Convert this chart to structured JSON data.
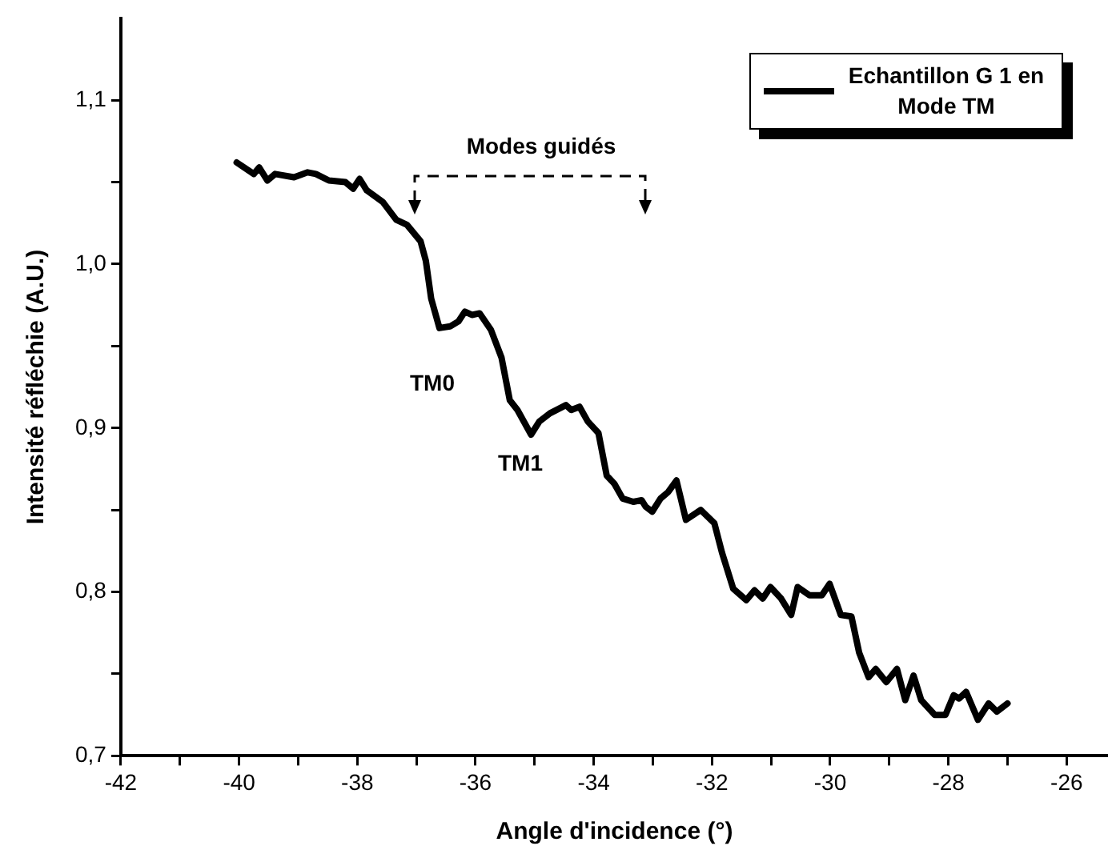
{
  "chart_data": {
    "type": "line",
    "xlabel": "Angle d'incidence (°)",
    "ylabel": "Intensité réfléchie (A.U.)",
    "legend": "top right",
    "grid": false,
    "marker": "none",
    "line_style": "solid",
    "xlim": [
      -42,
      -25.3
    ],
    "xticks": [
      -42,
      {
        "value": -41,
        "label": null
      },
      -40,
      {
        "value": -39,
        "label": null
      },
      -38,
      {
        "value": -37,
        "label": null
      },
      -36,
      {
        "value": -35,
        "label": null
      },
      -34,
      {
        "value": -33,
        "label": null
      },
      -32,
      {
        "value": -31,
        "label": null
      },
      -30,
      {
        "value": -29,
        "label": null
      },
      -28,
      {
        "value": -27,
        "label": null
      },
      -26
    ],
    "ylim": [
      0.7,
      1.15
    ],
    "yticks": [
      {
        "value": 0.7,
        "label": "0,7"
      },
      {
        "value": 0.75,
        "label": null
      },
      {
        "value": 0.8,
        "label": "0,8"
      },
      {
        "value": 0.85,
        "label": null
      },
      {
        "value": 0.9,
        "label": "0,9"
      },
      {
        "value": 0.95,
        "label": null
      },
      {
        "value": 1.0,
        "label": "1,0"
      },
      {
        "value": 1.05,
        "label": null
      },
      {
        "value": 1.1,
        "label": "1,1"
      }
    ],
    "annotations": [
      "Modes guidés",
      "TM0",
      "TM1"
    ],
    "series": [
      {
        "name": "Echantillon G 1 en Mode TM",
        "color": "#000000",
        "x": [
          -40.04,
          -39.75,
          -39.66,
          -39.52,
          -39.39,
          -39.07,
          -38.84,
          -38.7,
          -38.48,
          -38.2,
          -38.07,
          -37.96,
          -37.84,
          -37.57,
          -37.34,
          -37.16,
          -36.93,
          -36.84,
          -36.75,
          -36.61,
          -36.43,
          -36.29,
          -36.18,
          -36.06,
          -35.93,
          -35.74,
          -35.56,
          -35.42,
          -35.29,
          -35.06,
          -34.92,
          -34.74,
          -34.47,
          -34.38,
          -34.24,
          -34.1,
          -33.92,
          -33.78,
          -33.65,
          -33.51,
          -33.33,
          -33.19,
          -33.12,
          -33.01,
          -32.87,
          -32.74,
          -32.6,
          -32.44,
          -32.19,
          -31.96,
          -31.83,
          -31.64,
          -31.42,
          -31.28,
          -31.14,
          -31.01,
          -30.83,
          -30.66,
          -30.55,
          -30.35,
          -30.14,
          -30.01,
          -29.82,
          -29.64,
          -29.51,
          -29.35,
          -29.23,
          -29.05,
          -28.87,
          -28.73,
          -28.59,
          -28.46,
          -28.23,
          -28.05,
          -27.91,
          -27.82,
          -27.7,
          -27.5,
          -27.32,
          -27.18,
          -27.0
        ],
        "values": [
          1.062,
          1.055,
          1.059,
          1.051,
          1.055,
          1.053,
          1.056,
          1.055,
          1.051,
          1.05,
          1.046,
          1.052,
          1.045,
          1.038,
          1.027,
          1.024,
          1.014,
          1.002,
          0.979,
          0.961,
          0.962,
          0.965,
          0.971,
          0.969,
          0.97,
          0.96,
          0.943,
          0.917,
          0.911,
          0.896,
          0.904,
          0.909,
          0.914,
          0.911,
          0.913,
          0.904,
          0.897,
          0.871,
          0.866,
          0.857,
          0.855,
          0.856,
          0.852,
          0.849,
          0.857,
          0.861,
          0.868,
          0.844,
          0.85,
          0.842,
          0.824,
          0.802,
          0.795,
          0.801,
          0.796,
          0.803,
          0.796,
          0.786,
          0.803,
          0.798,
          0.798,
          0.805,
          0.786,
          0.785,
          0.763,
          0.748,
          0.753,
          0.745,
          0.753,
          0.734,
          0.749,
          0.734,
          0.725,
          0.725,
          0.737,
          0.735,
          0.739,
          0.722,
          0.732,
          0.727,
          0.732
        ]
      }
    ]
  }
}
